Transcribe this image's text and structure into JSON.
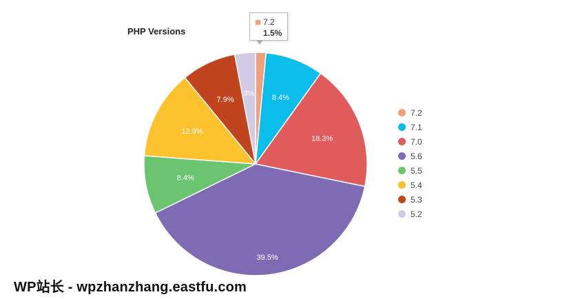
{
  "chart_data": {
    "type": "pie",
    "title": "PHP Versions",
    "slices": [
      {
        "label": "7.2",
        "value": 1.5,
        "value_label": "1.5%",
        "color": "#F0A07F"
      },
      {
        "label": "7.1",
        "value": 8.4,
        "value_label": "8.4%",
        "color": "#0BBDEB"
      },
      {
        "label": "7.0",
        "value": 18.3,
        "value_label": "18.3%",
        "color": "#E05C5C"
      },
      {
        "label": "5.6",
        "value": 39.5,
        "value_label": "39.5%",
        "color": "#7F6BB4"
      },
      {
        "label": "5.5",
        "value": 8.4,
        "value_label": "8.4%",
        "color": "#6BC46F"
      },
      {
        "label": "5.4",
        "value": 12.9,
        "value_label": "12.9%",
        "color": "#FBC22D"
      },
      {
        "label": "5.3",
        "value": 7.9,
        "value_label": "7.9%",
        "color": "#C0441D"
      },
      {
        "label": "5.2",
        "value": 3.0,
        "value_label": "3%",
        "color": "#D2CBE6"
      }
    ],
    "legend_position": "right"
  },
  "tooltip": {
    "label": "7.2",
    "value": "1.5%"
  },
  "watermark": "WP站长 - wpzhanzhang.eastfu.com"
}
